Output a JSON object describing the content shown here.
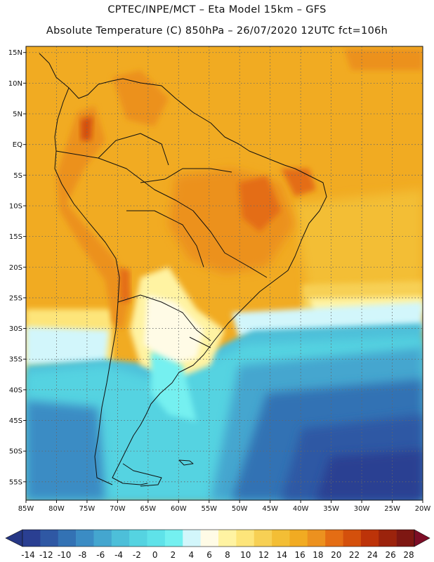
{
  "header": {
    "line1": "CPTEC/INPE/MCT –  Eta Model 15km – GFS",
    "line2": "Absolute Temperature (C) 850hPa – 26/07/2020 12UTC fct=106h"
  },
  "map": {
    "lon_range": [
      -85,
      -20
    ],
    "lat_range": [
      -58,
      16
    ],
    "lat_ticks": [
      {
        "value": 15,
        "label": "15N"
      },
      {
        "value": 10,
        "label": "10N"
      },
      {
        "value": 5,
        "label": "5N"
      },
      {
        "value": 0,
        "label": "EQ"
      },
      {
        "value": -5,
        "label": "5S"
      },
      {
        "value": -10,
        "label": "10S"
      },
      {
        "value": -15,
        "label": "15S"
      },
      {
        "value": -20,
        "label": "20S"
      },
      {
        "value": -25,
        "label": "25S"
      },
      {
        "value": -30,
        "label": "30S"
      },
      {
        "value": -35,
        "label": "35S"
      },
      {
        "value": -40,
        "label": "40S"
      },
      {
        "value": -45,
        "label": "45S"
      },
      {
        "value": -50,
        "label": "50S"
      },
      {
        "value": -55,
        "label": "55S"
      }
    ],
    "lon_ticks": [
      {
        "value": -85,
        "label": "85W"
      },
      {
        "value": -80,
        "label": "80W"
      },
      {
        "value": -75,
        "label": "75W"
      },
      {
        "value": -70,
        "label": "70W"
      },
      {
        "value": -65,
        "label": "65W"
      },
      {
        "value": -60,
        "label": "60W"
      },
      {
        "value": -55,
        "label": "55W"
      },
      {
        "value": -50,
        "label": "50W"
      },
      {
        "value": -45,
        "label": "45W"
      },
      {
        "value": -40,
        "label": "40W"
      },
      {
        "value": -35,
        "label": "35W"
      },
      {
        "value": -30,
        "label": "30W"
      },
      {
        "value": -25,
        "label": "25W"
      },
      {
        "value": -20,
        "label": "20W"
      }
    ],
    "grid": true
  },
  "colorbar": {
    "labels": [
      "-14",
      "-12",
      "-10",
      "-8",
      "-6",
      "-4",
      "-2",
      "0",
      "2",
      "4",
      "6",
      "8",
      "10",
      "12",
      "14",
      "16",
      "18",
      "20",
      "22",
      "24",
      "26",
      "28"
    ],
    "colors": [
      "#2a3f92",
      "#2f58a4",
      "#3372b4",
      "#3b8cc4",
      "#44a6cf",
      "#4dbfd9",
      "#55d3e1",
      "#5fe2e9",
      "#74f0f0",
      "#d2f6fb",
      "#fffbe6",
      "#fff3a2",
      "#fde57a",
      "#f7d054",
      "#f3be35",
      "#f1ab22",
      "#ec911f",
      "#e46d14",
      "#d4500c",
      "#bd3309",
      "#9b230c",
      "#7e1712"
    ],
    "under_color": "#263785",
    "over_color": "#7d0d26"
  }
}
